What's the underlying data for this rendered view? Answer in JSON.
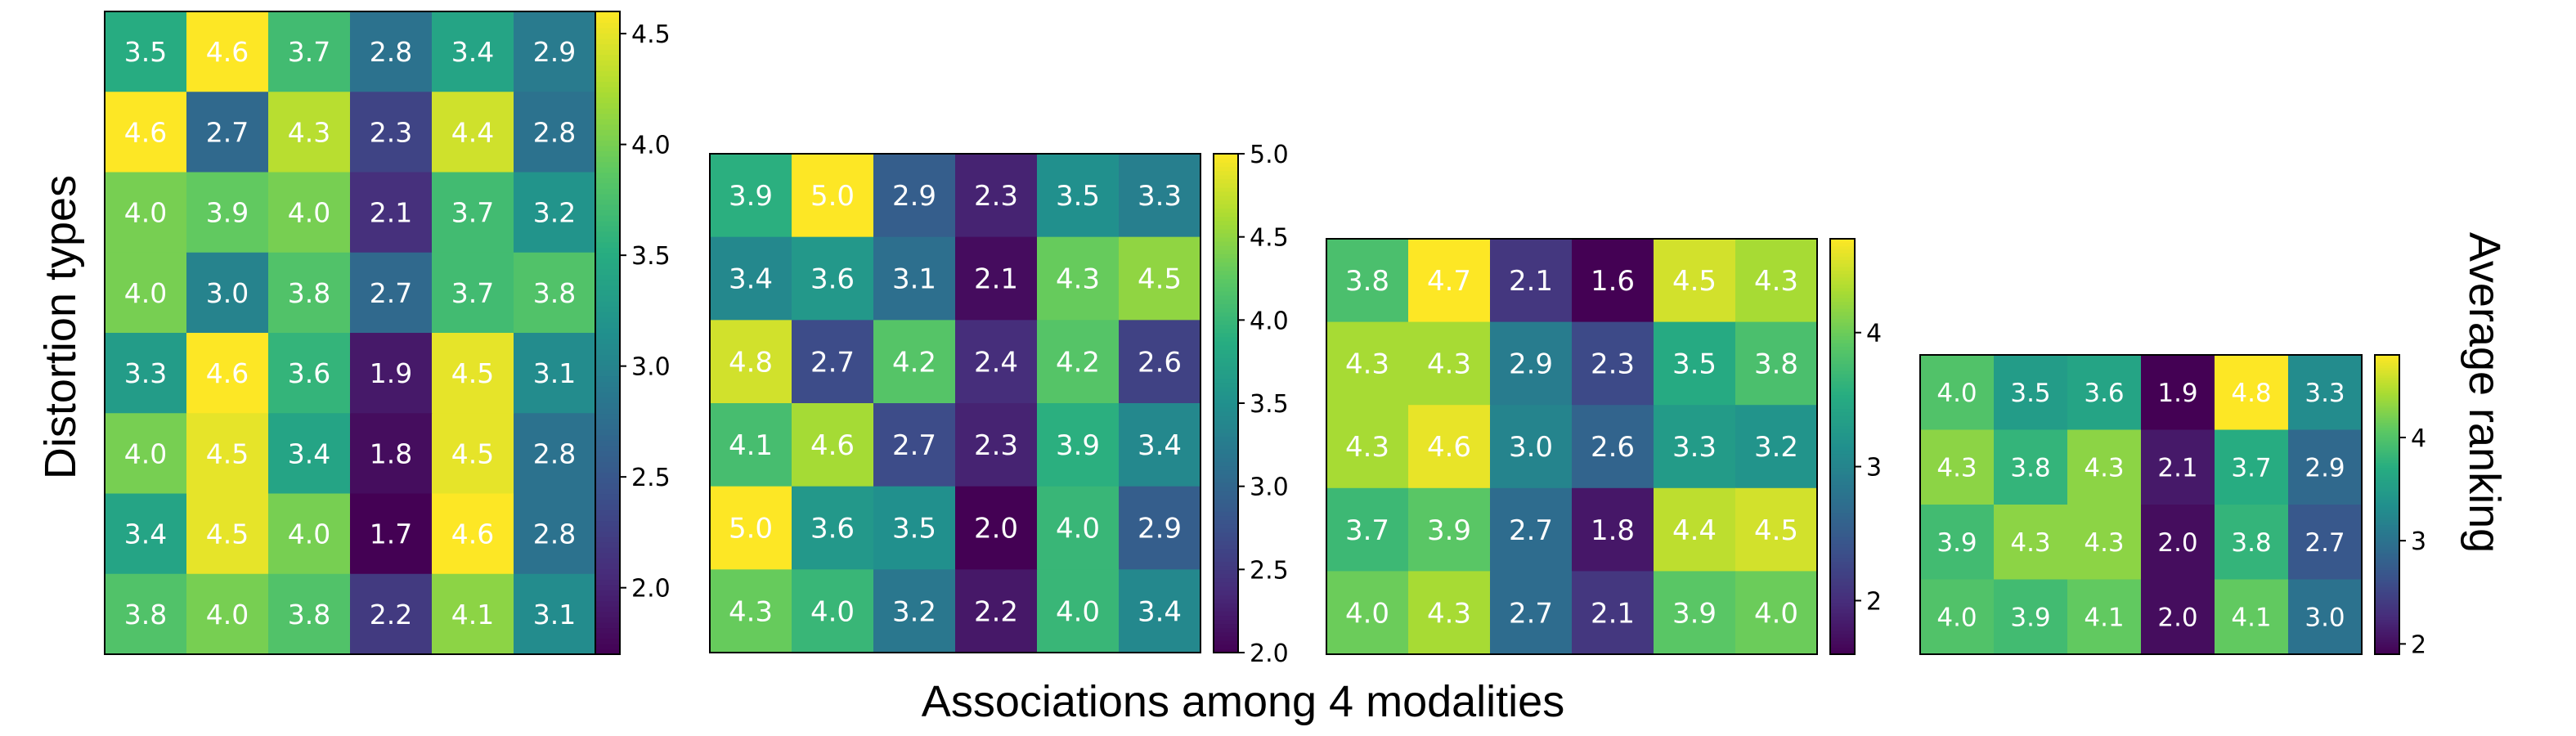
{
  "chart_data": {
    "type": "heatmap",
    "colormap": "viridis",
    "ylabel": "Distortion types",
    "xlabel": "Associations among 4 modalities",
    "colorbar_label": "Average ranking",
    "panels": [
      {
        "name": "panel-1",
        "rows": 8,
        "cols": 6,
        "vmin": 1.7,
        "vmax": 4.6,
        "values": [
          [
            3.5,
            4.6,
            3.7,
            2.8,
            3.4,
            2.9
          ],
          [
            4.6,
            2.7,
            4.3,
            2.3,
            4.4,
            2.8
          ],
          [
            4.0,
            3.9,
            4.0,
            2.1,
            3.7,
            3.2
          ],
          [
            4.0,
            3.0,
            3.8,
            2.7,
            3.7,
            3.8
          ],
          [
            3.3,
            4.6,
            3.6,
            1.9,
            4.5,
            3.1
          ],
          [
            4.0,
            4.5,
            3.4,
            1.8,
            4.5,
            2.8
          ],
          [
            3.4,
            4.5,
            4.0,
            1.7,
            4.6,
            2.8
          ],
          [
            3.8,
            4.0,
            3.8,
            2.2,
            4.1,
            3.1
          ]
        ],
        "cell_labels": [
          [
            "3.5",
            "4.6",
            "3.7",
            "2.8",
            "3.4",
            "2.9"
          ],
          [
            "4.6",
            "2.7",
            "4.3",
            "2.3",
            "4.4",
            "2.8"
          ],
          [
            "4.0",
            "3.9",
            "4.0",
            "2.1",
            "3.7",
            "3.2"
          ],
          [
            "4.0",
            "3.0",
            "3.8",
            "2.7",
            "3.7",
            "3.8"
          ],
          [
            "3.3",
            "4.6",
            "3.6",
            "1.9",
            "4.5",
            "3.1"
          ],
          [
            "4.0",
            "4.5",
            "3.4",
            "1.8",
            "4.5",
            "2.8"
          ],
          [
            "3.4",
            "4.5",
            "4.0",
            "1.7",
            "4.6",
            "2.8"
          ],
          [
            "3.8",
            "4.0",
            "3.8",
            "2.2",
            "4.1",
            "3.1"
          ]
        ],
        "colorbar_ticks": [
          2.0,
          2.5,
          3.0,
          3.5,
          4.0,
          4.5
        ],
        "colorbar_tick_labels": [
          "2.0",
          "2.5",
          "3.0",
          "3.5",
          "4.0",
          "4.5"
        ]
      },
      {
        "name": "panel-2",
        "rows": 6,
        "cols": 6,
        "vmin": 2.0,
        "vmax": 5.0,
        "values": [
          [
            3.9,
            5.0,
            2.9,
            2.3,
            3.5,
            3.3
          ],
          [
            3.4,
            3.6,
            3.1,
            2.1,
            4.3,
            4.5
          ],
          [
            4.8,
            2.7,
            4.2,
            2.4,
            4.2,
            2.6
          ],
          [
            4.1,
            4.6,
            2.7,
            2.3,
            3.9,
            3.4
          ],
          [
            5.0,
            3.6,
            3.5,
            2.0,
            4.0,
            2.9
          ],
          [
            4.3,
            4.0,
            3.2,
            2.2,
            4.0,
            3.4
          ]
        ],
        "cell_labels": [
          [
            "3.9",
            "5.0",
            "2.9",
            "2.3",
            "3.5",
            "3.3"
          ],
          [
            "3.4",
            "3.6",
            "3.1",
            "2.1",
            "4.3",
            "4.5"
          ],
          [
            "4.8",
            "2.7",
            "4.2",
            "2.4",
            "4.2",
            "2.6"
          ],
          [
            "4.1",
            "4.6",
            "2.7",
            "2.3",
            "3.9",
            "3.4"
          ],
          [
            "5.0",
            "3.6",
            "3.5",
            "2.0",
            "4.0",
            "2.9"
          ],
          [
            "4.3",
            "4.0",
            "3.2",
            "2.2",
            "4.0",
            "3.4"
          ]
        ],
        "colorbar_ticks": [
          2.0,
          2.5,
          3.0,
          3.5,
          4.0,
          4.5,
          5.0
        ],
        "colorbar_tick_labels": [
          "2.0",
          "2.5",
          "3.0",
          "3.5",
          "4.0",
          "4.5",
          "5.0"
        ]
      },
      {
        "name": "panel-3",
        "rows": 5,
        "cols": 6,
        "vmin": 1.6,
        "vmax": 4.7,
        "values": [
          [
            3.8,
            4.7,
            2.1,
            1.6,
            4.5,
            4.3
          ],
          [
            4.3,
            4.3,
            2.9,
            2.3,
            3.5,
            3.8
          ],
          [
            4.3,
            4.6,
            3.0,
            2.6,
            3.3,
            3.2
          ],
          [
            3.7,
            3.9,
            2.7,
            1.8,
            4.4,
            4.5
          ],
          [
            4.0,
            4.3,
            2.7,
            2.1,
            3.9,
            4.0
          ]
        ],
        "cell_labels": [
          [
            "3.8",
            "4.7",
            "2.1",
            "1.6",
            "4.5",
            "4.3"
          ],
          [
            "4.3",
            "4.3",
            "2.9",
            "2.3",
            "3.5",
            "3.8"
          ],
          [
            "4.3",
            "4.6",
            "3.0",
            "2.6",
            "3.3",
            "3.2"
          ],
          [
            "3.7",
            "3.9",
            "2.7",
            "1.8",
            "4.4",
            "4.5"
          ],
          [
            "4.0",
            "4.3",
            "2.7",
            "2.1",
            "3.9",
            "4.0"
          ]
        ],
        "colorbar_ticks": [
          2,
          3,
          4
        ],
        "colorbar_tick_labels": [
          "2",
          "3",
          "4"
        ]
      },
      {
        "name": "panel-4",
        "rows": 4,
        "cols": 6,
        "vmin": 1.9,
        "vmax": 4.8,
        "values": [
          [
            4.0,
            3.5,
            3.6,
            1.9,
            4.8,
            3.3
          ],
          [
            4.3,
            3.8,
            4.3,
            2.1,
            3.7,
            2.9
          ],
          [
            3.9,
            4.3,
            4.3,
            2.0,
            3.8,
            2.7
          ],
          [
            4.0,
            3.9,
            4.1,
            2.0,
            4.1,
            3.0
          ]
        ],
        "cell_labels": [
          [
            "4.0",
            "3.5",
            "3.6",
            "1.9",
            "4.8",
            "3.3"
          ],
          [
            "4.3",
            "3.8",
            "4.3",
            "2.1",
            "3.7",
            "2.9"
          ],
          [
            "3.9",
            "4.3",
            "4.3",
            "2.0",
            "3.8",
            "2.7"
          ],
          [
            "4.0",
            "3.9",
            "4.1",
            "2.0",
            "4.1",
            "3.0"
          ]
        ],
        "colorbar_ticks": [
          2,
          3,
          4
        ],
        "colorbar_tick_labels": [
          "2",
          "3",
          "4"
        ]
      }
    ]
  }
}
